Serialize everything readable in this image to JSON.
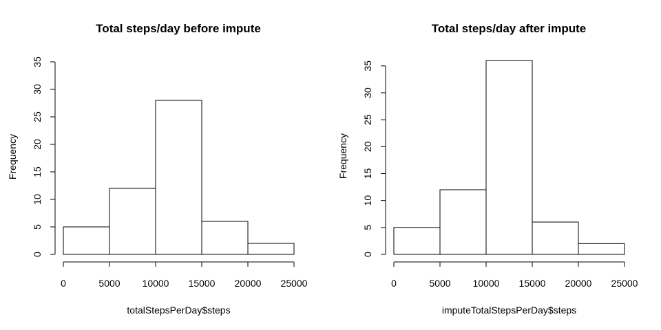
{
  "chart_data": [
    {
      "type": "bar",
      "title": "Total steps/day before impute",
      "xlabel": "totalStepsPerDay$steps",
      "ylabel": "Frequency",
      "bins": [
        [
          0,
          5000
        ],
        [
          5000,
          10000
        ],
        [
          10000,
          15000
        ],
        [
          15000,
          20000
        ],
        [
          20000,
          25000
        ]
      ],
      "values": [
        5,
        12,
        28,
        6,
        2
      ],
      "xlim": [
        0,
        25000
      ],
      "ylim": [
        0,
        35
      ],
      "xticks": [
        0,
        5000,
        10000,
        15000,
        20000,
        25000
      ],
      "yticks": [
        0,
        5,
        10,
        15,
        20,
        25,
        30,
        35
      ],
      "grid": false
    },
    {
      "type": "bar",
      "title": "Total steps/day after impute",
      "xlabel": "imputeTotalStepsPerDay$steps",
      "ylabel": "Frequency",
      "bins": [
        [
          0,
          5000
        ],
        [
          5000,
          10000
        ],
        [
          10000,
          15000
        ],
        [
          15000,
          20000
        ],
        [
          20000,
          25000
        ]
      ],
      "values": [
        5,
        12,
        36,
        6,
        2
      ],
      "xlim": [
        0,
        25000
      ],
      "ylim": [
        0,
        36
      ],
      "xticks": [
        0,
        5000,
        10000,
        15000,
        20000,
        25000
      ],
      "yticks": [
        0,
        5,
        10,
        15,
        20,
        25,
        30,
        35
      ],
      "grid": false
    }
  ]
}
